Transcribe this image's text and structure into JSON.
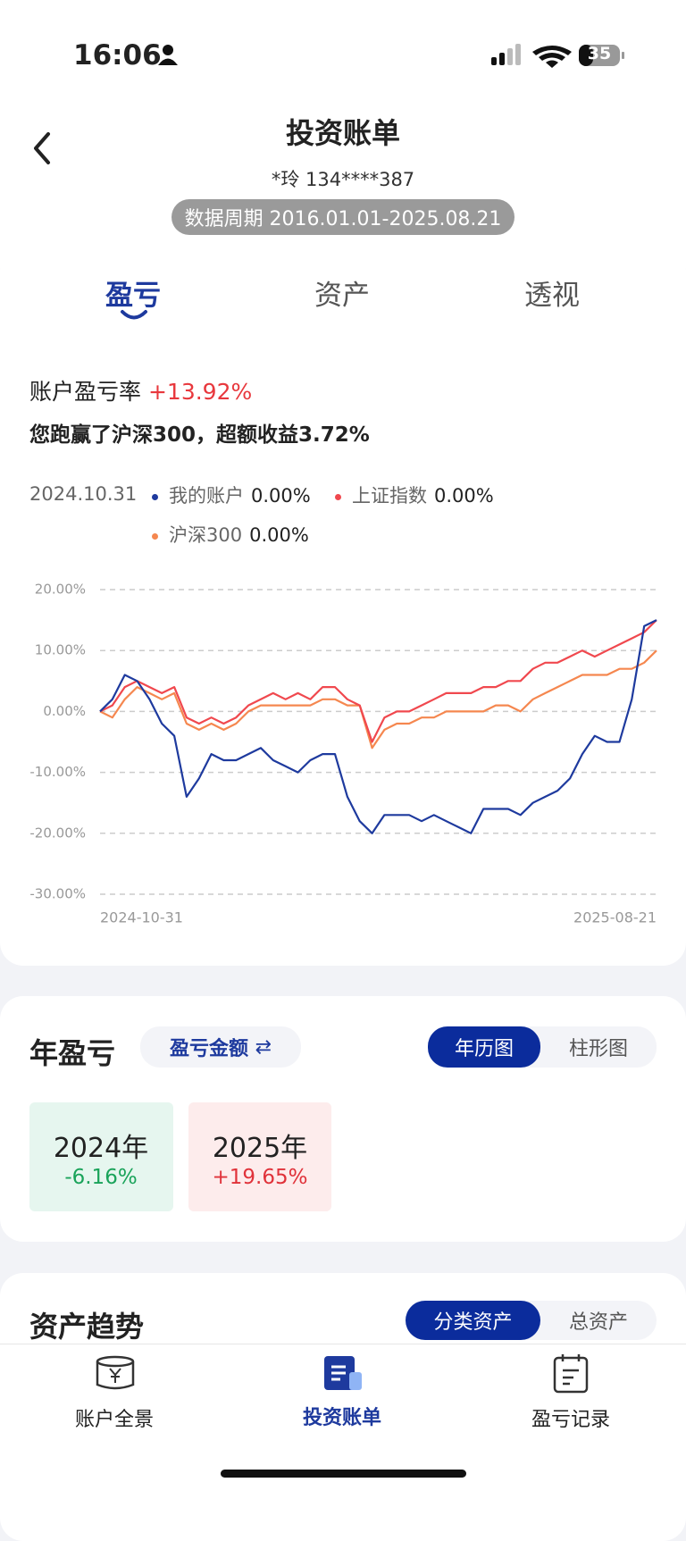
{
  "status_bar": {
    "time": "16:06",
    "battery": "35"
  },
  "header": {
    "title": "投资账单",
    "account": "*玲 134****387",
    "period": "数据周期 2016.01.01-2025.08.21"
  },
  "tabs": [
    "盈亏",
    "资产",
    "透视"
  ],
  "summary": {
    "rate_label": "账户盈亏率",
    "rate": "+13.92%",
    "note": "您跑赢了沪深300，超额收益3.72%"
  },
  "chart_data": {
    "type": "line",
    "legend_date": "2024.10.31",
    "categories": [
      "2024-10-31",
      null,
      null,
      null,
      null,
      null,
      null,
      null,
      null,
      null,
      null,
      null,
      null,
      null,
      null,
      null,
      null,
      null,
      null,
      null,
      null,
      null,
      null,
      null,
      null,
      null,
      null,
      null,
      null,
      null,
      null,
      null,
      null,
      null,
      null,
      null,
      null,
      null,
      null,
      null,
      null,
      null,
      null,
      null,
      null,
      "2025-08-21"
    ],
    "series": [
      {
        "name": "我的账户",
        "legend_value": "0.00%",
        "color": "#1e3a9e",
        "values": [
          0,
          2,
          6,
          5,
          2,
          -2,
          -4,
          -14,
          -11,
          -7,
          -8,
          -8,
          -7,
          -6,
          -8,
          -9,
          -10,
          -8,
          -7,
          -7,
          -14,
          -18,
          -20,
          -17,
          -17,
          -17,
          -18,
          -17,
          -18,
          -19,
          -20,
          -16,
          -16,
          -16,
          -17,
          -15,
          -14,
          -13,
          -11,
          -7,
          -4,
          -5,
          -5,
          2,
          14,
          15
        ]
      },
      {
        "name": "上证指数",
        "legend_value": "0.00%",
        "color": "#f0484e",
        "values": [
          0,
          1,
          4,
          5,
          4,
          3,
          4,
          -1,
          -2,
          -1,
          -2,
          -1,
          1,
          2,
          3,
          2,
          3,
          2,
          4,
          4,
          2,
          1,
          -5,
          -1,
          0,
          0,
          1,
          2,
          3,
          3,
          3,
          4,
          4,
          5,
          5,
          7,
          8,
          8,
          9,
          10,
          9,
          10,
          11,
          12,
          13,
          15
        ]
      },
      {
        "name": "沪深300",
        "legend_value": "0.00%",
        "color": "#f5874f",
        "values": [
          0,
          -1,
          2,
          4,
          3,
          2,
          3,
          -2,
          -3,
          -2,
          -3,
          -2,
          0,
          1,
          1,
          1,
          1,
          1,
          2,
          2,
          1,
          1,
          -6,
          -3,
          -2,
          -2,
          -1,
          -1,
          0,
          0,
          0,
          0,
          1,
          1,
          0,
          2,
          3,
          4,
          5,
          6,
          6,
          6,
          7,
          7,
          8,
          10
        ]
      }
    ],
    "ylim": [
      -30,
      20
    ],
    "yticks": [
      {
        "value": -30,
        "label": "-30.00%"
      },
      {
        "value": -20,
        "label": "-20.00%"
      },
      {
        "value": -10,
        "label": "-10.00%"
      },
      {
        "value": 0,
        "label": "0.00%"
      },
      {
        "value": 10,
        "label": "10.00%"
      },
      {
        "value": 20,
        "label": "20.00%"
      }
    ],
    "grid": true
  },
  "year_pnl": {
    "title": "年盈亏",
    "mode": "盈亏金额",
    "views": [
      "年历图",
      "柱形图"
    ],
    "years": [
      {
        "year": "2024年",
        "value": "-6.16%"
      },
      {
        "year": "2025年",
        "value": "+19.65%"
      }
    ]
  },
  "asset_trend": {
    "title": "资产趋势",
    "views": [
      "分类资产",
      "总资产"
    ]
  },
  "nav": [
    "账户全景",
    "投资账单",
    "盈亏记录"
  ]
}
